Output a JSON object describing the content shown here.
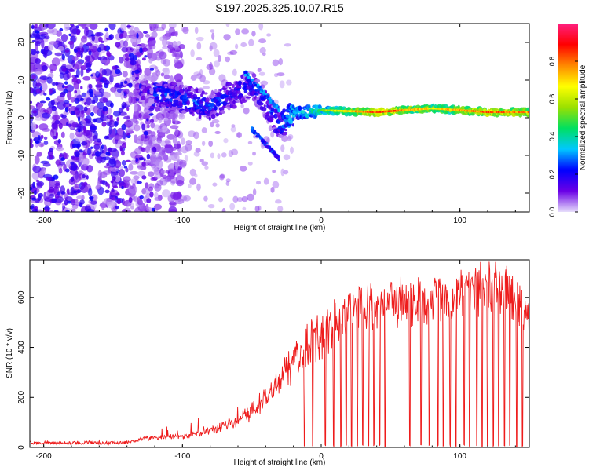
{
  "title": "S197.2025.325.10.07.R15",
  "chart_data": [
    {
      "type": "heatmap",
      "name": "spectrogram",
      "xlabel": "Height of straight line (km)",
      "ylabel": "Frequency (Hz)",
      "xlim": [
        -210,
        150
      ],
      "ylim": [
        -25,
        25
      ],
      "xticks": [
        {
          "value": -200,
          "label": "-200"
        },
        {
          "value": -100,
          "label": "-100"
        },
        {
          "value": 0,
          "label": "0"
        },
        {
          "value": 100,
          "label": "100"
        }
      ],
      "yticks": [
        {
          "value": 20,
          "label": "20"
        },
        {
          "value": 10,
          "label": "10"
        },
        {
          "value": 0,
          "label": "0"
        },
        {
          "value": -10,
          "label": "-10"
        },
        {
          "value": -20,
          "label": "-20"
        }
      ],
      "colorbar": {
        "label": "Normalized spectral amplitude",
        "range": [
          0,
          1
        ],
        "ticks": [
          {
            "value": 0.0,
            "label": "0.0"
          },
          {
            "value": 0.2,
            "label": "0.2"
          },
          {
            "value": 0.4,
            "label": "0.4"
          },
          {
            "value": 0.6,
            "label": "0.6"
          },
          {
            "value": 0.8,
            "label": "0.8"
          }
        ],
        "colors": [
          "#e6ddfb",
          "#6a00e6",
          "#0000ff",
          "#00c8ff",
          "#00e060",
          "#9be000",
          "#ffff00",
          "#ff8800",
          "#ff0000",
          "#ff2080"
        ]
      },
      "ridge_description_points": [
        {
          "x": -120,
          "y": 7,
          "amp": 0.3
        },
        {
          "x": -80,
          "y": 3,
          "amp": 0.3
        },
        {
          "x": -50,
          "y": 9,
          "amp": 0.25
        },
        {
          "x": -30,
          "y": -2,
          "amp": 0.3
        },
        {
          "x": -20,
          "y": 1,
          "amp": 0.45
        },
        {
          "x": 0,
          "y": 2,
          "amp": 0.55
        },
        {
          "x": 40,
          "y": 1.5,
          "amp": 0.9
        },
        {
          "x": 80,
          "y": 2.5,
          "amp": 0.7
        },
        {
          "x": 120,
          "y": 1.5,
          "amp": 0.85
        },
        {
          "x": 148,
          "y": 1.5,
          "amp": 0.8
        }
      ]
    },
    {
      "type": "line",
      "name": "snr",
      "xlabel": "Height of straight line (km)",
      "ylabel": "SNR (10 * v/v)",
      "xlim": [
        -210,
        150
      ],
      "ylim": [
        0,
        750
      ],
      "xticks": [
        {
          "value": -200,
          "label": "-200"
        },
        {
          "value": -100,
          "label": "-100"
        },
        {
          "value": 0,
          "label": "0"
        },
        {
          "value": 100,
          "label": "100"
        }
      ],
      "yticks": [
        {
          "value": 0,
          "label": "0"
        },
        {
          "value": 200,
          "label": "200"
        },
        {
          "value": 400,
          "label": "400"
        },
        {
          "value": 600,
          "label": "600"
        }
      ],
      "color": "#ee1c1c",
      "series": [
        {
          "name": "SNR",
          "envelope": [
            {
              "x": -210,
              "y": 18
            },
            {
              "x": -140,
              "y": 20
            },
            {
              "x": -125,
              "y": 40
            },
            {
              "x": -100,
              "y": 45
            },
            {
              "x": -80,
              "y": 70
            },
            {
              "x": -60,
              "y": 110
            },
            {
              "x": -45,
              "y": 170
            },
            {
              "x": -35,
              "y": 240
            },
            {
              "x": -25,
              "y": 320
            },
            {
              "x": -10,
              "y": 420
            },
            {
              "x": 10,
              "y": 520
            },
            {
              "x": 30,
              "y": 570
            },
            {
              "x": 60,
              "y": 595
            },
            {
              "x": 90,
              "y": 610
            },
            {
              "x": 120,
              "y": 660
            },
            {
              "x": 138,
              "y": 640
            },
            {
              "x": 150,
              "y": 500
            }
          ],
          "dropouts_x": [
            -12,
            -6,
            3,
            9,
            14,
            18,
            22,
            26,
            30,
            34,
            38,
            42,
            46,
            64,
            72,
            78,
            84,
            88,
            93,
            97,
            103,
            107,
            112,
            116,
            120,
            124,
            128,
            132,
            136,
            141,
            145
          ]
        }
      ]
    }
  ]
}
